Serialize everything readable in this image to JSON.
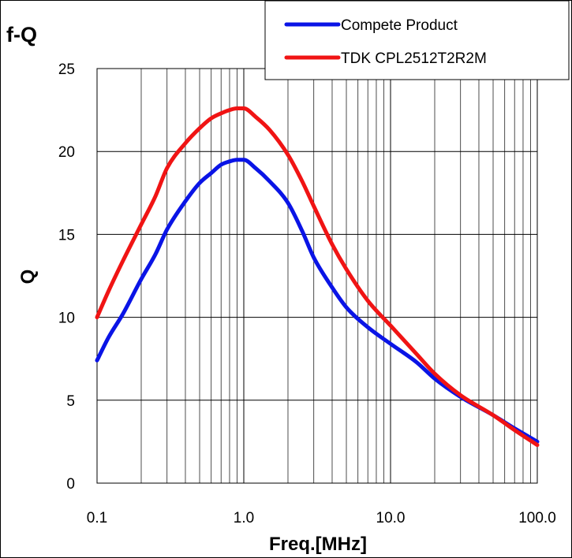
{
  "chart_data": {
    "type": "line",
    "title": "f-Q",
    "xlabel": "Freq.[MHz]",
    "ylabel": "Q",
    "xscale": "log",
    "xlim": [
      0.1,
      100
    ],
    "ylim": [
      0,
      25
    ],
    "xticks": [
      0.1,
      1,
      10,
      100
    ],
    "xtick_labels": [
      "0.1",
      "1.0",
      "10.0",
      "100.0"
    ],
    "yticks": [
      0,
      5,
      10,
      15,
      20,
      25
    ],
    "ytick_labels": [
      "0",
      "5",
      "10",
      "15",
      "20",
      "25"
    ],
    "grid": true,
    "legend_position": "top-right",
    "series": [
      {
        "name": "Compete Product",
        "color": "#0a14e6",
        "x": [
          0.1,
          0.12,
          0.15,
          0.2,
          0.25,
          0.3,
          0.4,
          0.5,
          0.6,
          0.7,
          0.8,
          0.9,
          1.0,
          1.2,
          1.5,
          2.0,
          2.5,
          3.0,
          4.0,
          5.0,
          7.0,
          10.0,
          15.0,
          20.0,
          30.0,
          50.0,
          70.0,
          100.0
        ],
        "y": [
          7.4,
          8.8,
          10.2,
          12.3,
          13.8,
          15.3,
          17.0,
          18.1,
          18.7,
          19.2,
          19.4,
          19.5,
          19.5,
          19.0,
          18.2,
          16.9,
          15.2,
          13.6,
          11.8,
          10.6,
          9.4,
          8.4,
          7.3,
          6.3,
          5.2,
          4.1,
          3.3,
          2.5
        ]
      },
      {
        "name": "TDK CPL2512T2R2M",
        "color": "#f01414",
        "x": [
          0.1,
          0.12,
          0.15,
          0.2,
          0.25,
          0.3,
          0.4,
          0.5,
          0.6,
          0.7,
          0.8,
          0.9,
          1.0,
          1.2,
          1.5,
          2.0,
          2.5,
          3.0,
          4.0,
          5.0,
          7.0,
          10.0,
          15.0,
          20.0,
          30.0,
          50.0,
          70.0,
          100.0
        ],
        "y": [
          10.0,
          11.6,
          13.4,
          15.6,
          17.3,
          19.0,
          20.5,
          21.4,
          22.0,
          22.3,
          22.5,
          22.6,
          22.6,
          22.1,
          21.3,
          19.8,
          18.2,
          16.7,
          14.4,
          12.9,
          11.0,
          9.5,
          7.8,
          6.6,
          5.3,
          4.1,
          3.2,
          2.3
        ]
      }
    ]
  }
}
